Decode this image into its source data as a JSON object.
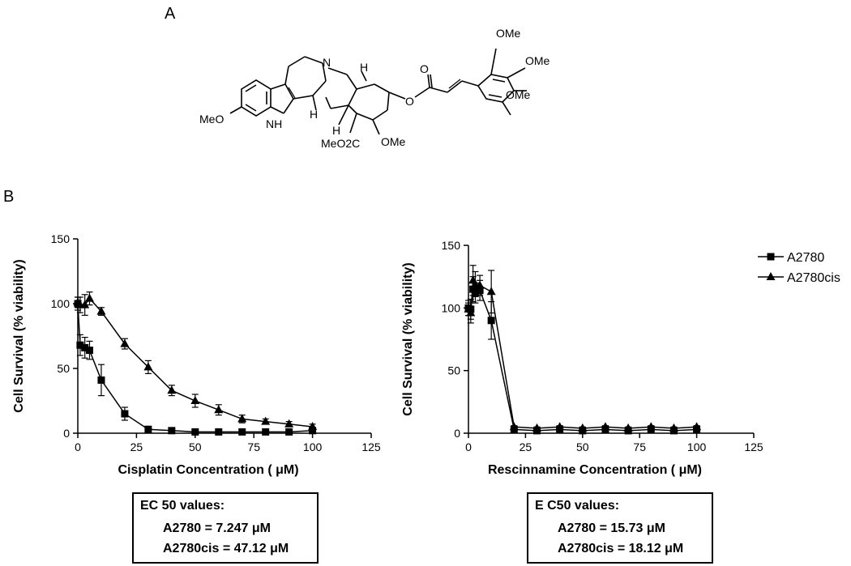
{
  "panel_a_label": "A",
  "panel_b_label": "B",
  "molecule": {
    "labels": [
      "OMe",
      "OMe",
      "OMe",
      "O",
      "O",
      "N",
      "H",
      "H",
      "H",
      "MeO",
      "NH",
      "OMe",
      "MeO2C"
    ]
  },
  "chart_data": [
    {
      "type": "line",
      "xlabel": "Cisplatin Concentration ( μM)",
      "ylabel": "Cell Survival (% viability)",
      "xlim": [
        0,
        125
      ],
      "ylim": [
        0,
        150
      ],
      "xticks": [
        "0",
        "25",
        "50",
        "75",
        "100",
        "125"
      ],
      "yticks": [
        "0",
        "50",
        "100",
        "150"
      ],
      "series": [
        {
          "name": "A2780",
          "marker": "square",
          "x": [
            0,
            1,
            3,
            5,
            10,
            20,
            30,
            40,
            50,
            60,
            70,
            80,
            90,
            100
          ],
          "y": [
            100,
            68,
            66,
            64,
            41,
            15,
            3,
            2,
            1,
            1,
            1,
            1,
            1,
            2
          ],
          "err": [
            5,
            8,
            8,
            7,
            12,
            5,
            2,
            1,
            1,
            1,
            1,
            1,
            1,
            1
          ]
        },
        {
          "name": "A2780cis",
          "marker": "triangle",
          "x": [
            0,
            1,
            3,
            5,
            10,
            20,
            30,
            40,
            50,
            60,
            70,
            80,
            90,
            100
          ],
          "y": [
            101,
            99,
            99,
            104,
            94,
            69,
            51,
            33,
            25,
            18,
            11,
            9,
            7,
            5
          ],
          "err": [
            4,
            6,
            8,
            5,
            3,
            4,
            5,
            4,
            5,
            4,
            3,
            2,
            2,
            2
          ]
        }
      ]
    },
    {
      "type": "line",
      "xlabel": "Rescinnamine Concentration ( μM)",
      "ylabel": "Cell Survival (% viability)",
      "xlim": [
        0,
        125
      ],
      "ylim": [
        0,
        150
      ],
      "xticks": [
        "0",
        "25",
        "50",
        "75",
        "100",
        "125"
      ],
      "yticks": [
        "0",
        "50",
        "100",
        "150"
      ],
      "legend": "top-right",
      "series": [
        {
          "name": "A2780",
          "marker": "square",
          "x": [
            0,
            1,
            2,
            3,
            5,
            10,
            20,
            30,
            40,
            50,
            60,
            70,
            80,
            90,
            100
          ],
          "y": [
            100,
            99,
            115,
            112,
            114,
            90,
            3,
            2,
            3,
            2,
            3,
            2,
            3,
            2,
            3
          ],
          "err": [
            6,
            8,
            10,
            8,
            8,
            15,
            1,
            1,
            1,
            1,
            1,
            1,
            1,
            1,
            1
          ]
        },
        {
          "name": "A2780cis",
          "marker": "triangle",
          "x": [
            0,
            1,
            2,
            3,
            5,
            10,
            20,
            30,
            40,
            50,
            60,
            70,
            80,
            90,
            100
          ],
          "y": [
            99,
            96,
            122,
            119,
            118,
            113,
            5,
            4,
            5,
            4,
            5,
            4,
            5,
            4,
            5
          ],
          "err": [
            5,
            8,
            12,
            10,
            8,
            17,
            1,
            1,
            1,
            1,
            1,
            1,
            1,
            1,
            1
          ]
        }
      ]
    }
  ],
  "ec_boxes": [
    {
      "title": "EC 50 values:",
      "line1": "A2780 = 7.247 μM",
      "line2": "A2780cis = 47.12 μM"
    },
    {
      "title": "E C50 values:",
      "line1": "A2780 = 15.73 μM",
      "line2": "A2780cis = 18.12 μM"
    }
  ]
}
